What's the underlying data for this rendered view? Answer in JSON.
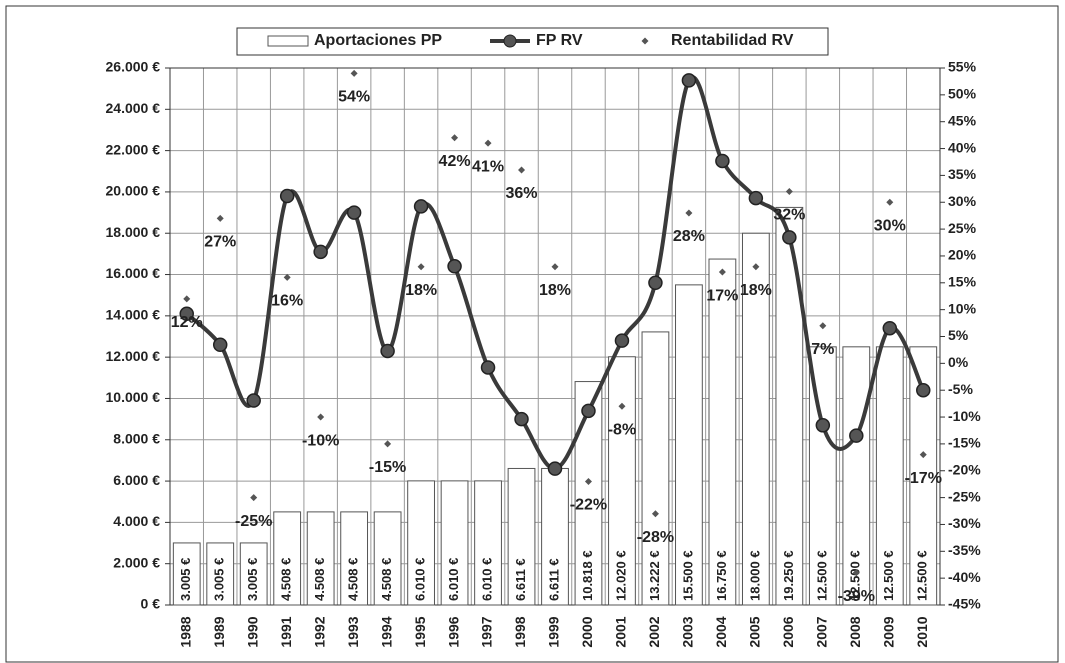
{
  "chart_data": {
    "type": "bar-line",
    "categories": [
      "1988",
      "1989",
      "1990",
      "1991",
      "1992",
      "1993",
      "1994",
      "1995",
      "1996",
      "1997",
      "1998",
      "1999",
      "2000",
      "2001",
      "2002",
      "2003",
      "2004",
      "2005",
      "2006",
      "2007",
      "2008",
      "2009",
      "2010"
    ],
    "series": [
      {
        "name": "Aportaciones PP",
        "type": "bar",
        "color": "#ffffff",
        "axis": "y",
        "values": [
          3005,
          3005,
          3005,
          4508,
          4508,
          4508,
          4508,
          6010,
          6010,
          6010,
          6611,
          6611,
          10818,
          12020,
          13222,
          15500,
          16750,
          18000,
          19250,
          12500,
          12500,
          12500,
          12500
        ],
        "value_labels": [
          "3.005 €",
          "3.005 €",
          "3.005 €",
          "4.508 €",
          "4.508 €",
          "4.508 €",
          "4.508 €",
          "6.010 €",
          "6.010 €",
          "6.010 €",
          "6.611 €",
          "6.611 €",
          "10.818 €",
          "12.020 €",
          "13.222 €",
          "15.500 €",
          "16.750 €",
          "18.000 €",
          "19.250 €",
          "12.500 €",
          "12.500 €",
          "12.500 €",
          "12.500 €"
        ]
      },
      {
        "name": "FP RV",
        "type": "line",
        "color": "#3a3a3a",
        "axis": "y",
        "values": [
          14100,
          12600,
          9900,
          19800,
          17100,
          19000,
          12300,
          19300,
          16400,
          11500,
          9000,
          6600,
          9400,
          12800,
          15600,
          25400,
          21500,
          19700,
          17800,
          8700,
          8200,
          13400,
          10400
        ]
      },
      {
        "name": "Rentabilidad RV",
        "type": "scatter",
        "color": "#555555",
        "axis": "y2",
        "values": [
          12,
          27,
          -25,
          16,
          -10,
          54,
          -15,
          18,
          42,
          41,
          36,
          18,
          -22,
          -8,
          -28,
          28,
          17,
          18,
          32,
          7,
          -39,
          30,
          -17
        ],
        "value_labels": [
          "12%",
          "27%",
          "-25%",
          "16%",
          "-10%",
          "54%",
          "-15%",
          "18%",
          "42%",
          "41%",
          "36%",
          "18%",
          "-22%",
          "-8%",
          "-28%",
          "28%",
          "17%",
          "18%",
          "32%",
          "7%",
          "-39%",
          "30%",
          "-17%"
        ]
      }
    ],
    "ylim": [
      0,
      26000
    ],
    "yticks": [
      {
        "value": 0,
        "label": "0 €"
      },
      {
        "value": 2000,
        "label": "2.000 €"
      },
      {
        "value": 4000,
        "label": "4.000 €"
      },
      {
        "value": 6000,
        "label": "6.000 €"
      },
      {
        "value": 8000,
        "label": "8.000 €"
      },
      {
        "value": 10000,
        "label": "10.000 €"
      },
      {
        "value": 12000,
        "label": "12.000 €"
      },
      {
        "value": 14000,
        "label": "14.000 €"
      },
      {
        "value": 16000,
        "label": "16.000 €"
      },
      {
        "value": 18000,
        "label": "18.000 €"
      },
      {
        "value": 20000,
        "label": "20.000 €"
      },
      {
        "value": 22000,
        "label": "22.000 €"
      },
      {
        "value": 24000,
        "label": "24.000 €"
      },
      {
        "value": 26000,
        "label": "26.000 €"
      }
    ],
    "y2lim": [
      -45,
      55
    ],
    "y2ticks": [
      {
        "value": -45,
        "label": "-45%"
      },
      {
        "value": -40,
        "label": "-40%"
      },
      {
        "value": -35,
        "label": "-35%"
      },
      {
        "value": -30,
        "label": "-30%"
      },
      {
        "value": -25,
        "label": "-25%"
      },
      {
        "value": -20,
        "label": "-20%"
      },
      {
        "value": -15,
        "label": "-15%"
      },
      {
        "value": -10,
        "label": "-10%"
      },
      {
        "value": -5,
        "label": "-5%"
      },
      {
        "value": 0,
        "label": "0%"
      },
      {
        "value": 5,
        "label": "5%"
      },
      {
        "value": 10,
        "label": "10%"
      },
      {
        "value": 15,
        "label": "15%"
      },
      {
        "value": 20,
        "label": "20%"
      },
      {
        "value": 25,
        "label": "25%"
      },
      {
        "value": 30,
        "label": "30%"
      },
      {
        "value": 35,
        "label": "35%"
      },
      {
        "value": 40,
        "label": "40%"
      },
      {
        "value": 45,
        "label": "45%"
      },
      {
        "value": 50,
        "label": "50%"
      },
      {
        "value": 55,
        "label": "55%"
      }
    ],
    "grid": true,
    "legend": "top"
  }
}
